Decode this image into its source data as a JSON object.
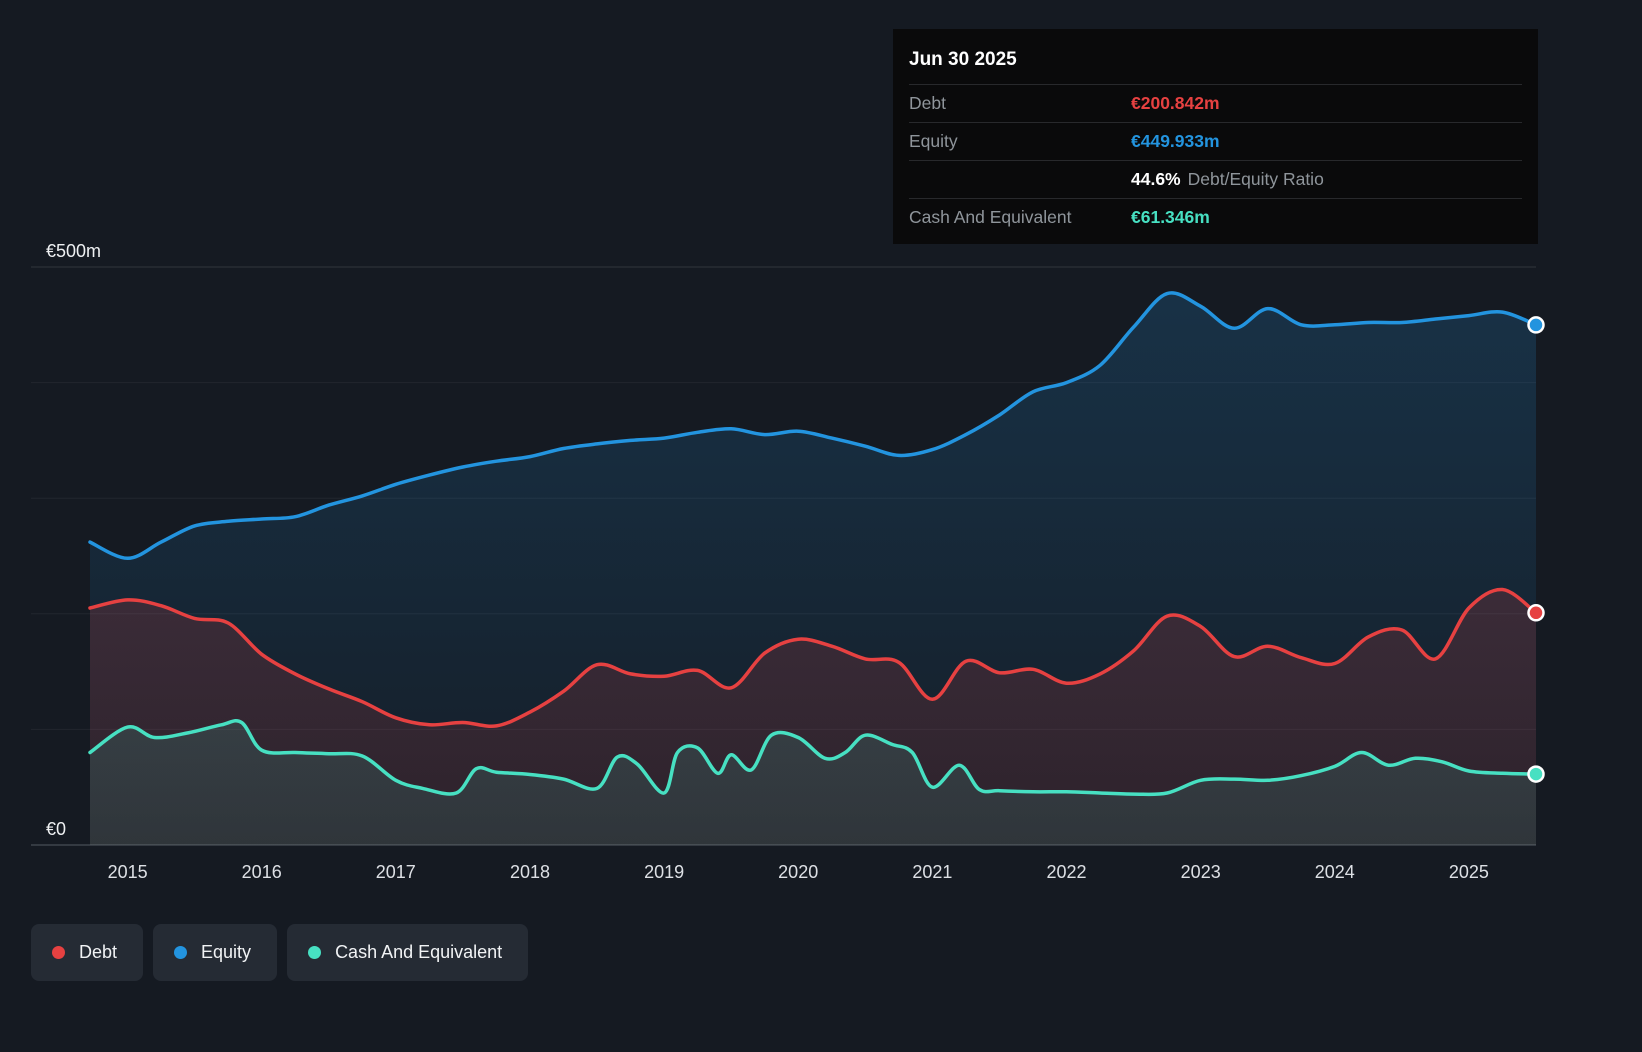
{
  "colors": {
    "debt": "#E64141",
    "equity": "#2394DF",
    "cash": "#47E0C2",
    "background": "#151A22",
    "tooltip_background": "#0A0A0B",
    "ratio_text": "#FFFFFF"
  },
  "tooltip": {
    "date": "Jun 30 2025",
    "debt_label": "Debt",
    "debt_value": "€200.842m",
    "equity_label": "Equity",
    "equity_value": "€449.933m",
    "ratio_value": "44.6%",
    "ratio_label": "Debt/Equity Ratio",
    "cash_label": "Cash And Equivalent",
    "cash_value": "€61.346m"
  },
  "legend": [
    {
      "label": "Debt",
      "color": "#E64141"
    },
    {
      "label": "Equity",
      "color": "#2394DF"
    },
    {
      "label": "Cash And Equivalent",
      "color": "#47E0C2"
    }
  ],
  "chart_data": {
    "type": "area",
    "x_unit": "year",
    "x_range": [
      2014.72,
      2025.5
    ],
    "y_range": [
      0,
      500
    ],
    "y_ticks": [
      {
        "value": 500,
        "label": "€500m"
      },
      {
        "value": 0,
        "label": "€0"
      }
    ],
    "x_ticks": [
      "2015",
      "2016",
      "2017",
      "2018",
      "2019",
      "2020",
      "2021",
      "2022",
      "2023",
      "2024",
      "2025"
    ],
    "grid": true,
    "legend_position": "bottom-left",
    "series": [
      {
        "name": "Equity",
        "color": "#2394DF",
        "end_value_label": "€449.933m",
        "x": [
          2014.72,
          2015,
          2015.25,
          2015.5,
          2015.75,
          2016,
          2016.25,
          2016.5,
          2016.75,
          2017,
          2017.25,
          2017.5,
          2017.75,
          2018,
          2018.25,
          2018.5,
          2018.75,
          2019,
          2019.25,
          2019.5,
          2019.75,
          2020,
          2020.25,
          2020.5,
          2020.75,
          2021,
          2021.25,
          2021.5,
          2021.75,
          2022,
          2022.25,
          2022.5,
          2022.75,
          2023,
          2023.25,
          2023.5,
          2023.75,
          2024,
          2024.25,
          2024.5,
          2024.75,
          2025,
          2025.25,
          2025.5
        ],
        "values": [
          262,
          248,
          262,
          276,
          280,
          282,
          284,
          294,
          302,
          312,
          320,
          327,
          332,
          336,
          343,
          347,
          350,
          352,
          357,
          360,
          355,
          358,
          352,
          345,
          337,
          342,
          355,
          372,
          392,
          400,
          415,
          448,
          477,
          466,
          447,
          464,
          450,
          450,
          452,
          452,
          455,
          458,
          461,
          449.933
        ]
      },
      {
        "name": "Debt",
        "color": "#E64141",
        "end_value_label": "€200.842m",
        "x": [
          2014.72,
          2015,
          2015.25,
          2015.5,
          2015.75,
          2016,
          2016.25,
          2016.5,
          2016.75,
          2017,
          2017.25,
          2017.5,
          2017.75,
          2018,
          2018.25,
          2018.5,
          2018.75,
          2019,
          2019.25,
          2019.5,
          2019.75,
          2020,
          2020.25,
          2020.5,
          2020.75,
          2021,
          2021.25,
          2021.5,
          2021.75,
          2022,
          2022.25,
          2022.5,
          2022.75,
          2023,
          2023.25,
          2023.5,
          2023.75,
          2024,
          2024.25,
          2024.5,
          2024.75,
          2025,
          2025.25,
          2025.5
        ],
        "values": [
          205,
          212,
          207,
          196,
          192,
          165,
          148,
          135,
          124,
          110,
          104,
          106,
          103,
          115,
          133,
          156,
          148,
          146,
          151,
          136,
          166,
          178,
          172,
          161,
          158,
          126,
          159,
          149,
          152,
          140,
          148,
          168,
          198,
          189,
          163,
          172,
          162,
          157,
          180,
          186,
          161,
          205,
          221,
          200.842
        ]
      },
      {
        "name": "Cash And Equivalent",
        "color": "#47E0C2",
        "end_value_label": "€61.346m",
        "x": [
          2014.72,
          2015,
          2015.2,
          2015.45,
          2015.7,
          2015.85,
          2016,
          2016.25,
          2016.5,
          2016.75,
          2017,
          2017.2,
          2017.45,
          2017.6,
          2017.75,
          2018,
          2018.25,
          2018.5,
          2018.65,
          2018.8,
          2019,
          2019.1,
          2019.25,
          2019.4,
          2019.5,
          2019.65,
          2019.8,
          2020,
          2020.2,
          2020.35,
          2020.5,
          2020.7,
          2020.85,
          2021,
          2021.2,
          2021.35,
          2021.5,
          2021.75,
          2022,
          2022.25,
          2022.5,
          2022.75,
          2023,
          2023.25,
          2023.5,
          2023.75,
          2024,
          2024.2,
          2024.4,
          2024.6,
          2024.8,
          2025,
          2025.25,
          2025.5
        ],
        "values": [
          80,
          102,
          93,
          97,
          104,
          106,
          82,
          80,
          79,
          77,
          56,
          49,
          45,
          66,
          63,
          61,
          57,
          49,
          76,
          70,
          45,
          80,
          84,
          62,
          78,
          65,
          95,
          93,
          75,
          80,
          95,
          87,
          80,
          50,
          69,
          48,
          47,
          46,
          46,
          45,
          44,
          45,
          56,
          57,
          56,
          60,
          68,
          80,
          69,
          75,
          72,
          64,
          62,
          61.346
        ]
      }
    ]
  }
}
